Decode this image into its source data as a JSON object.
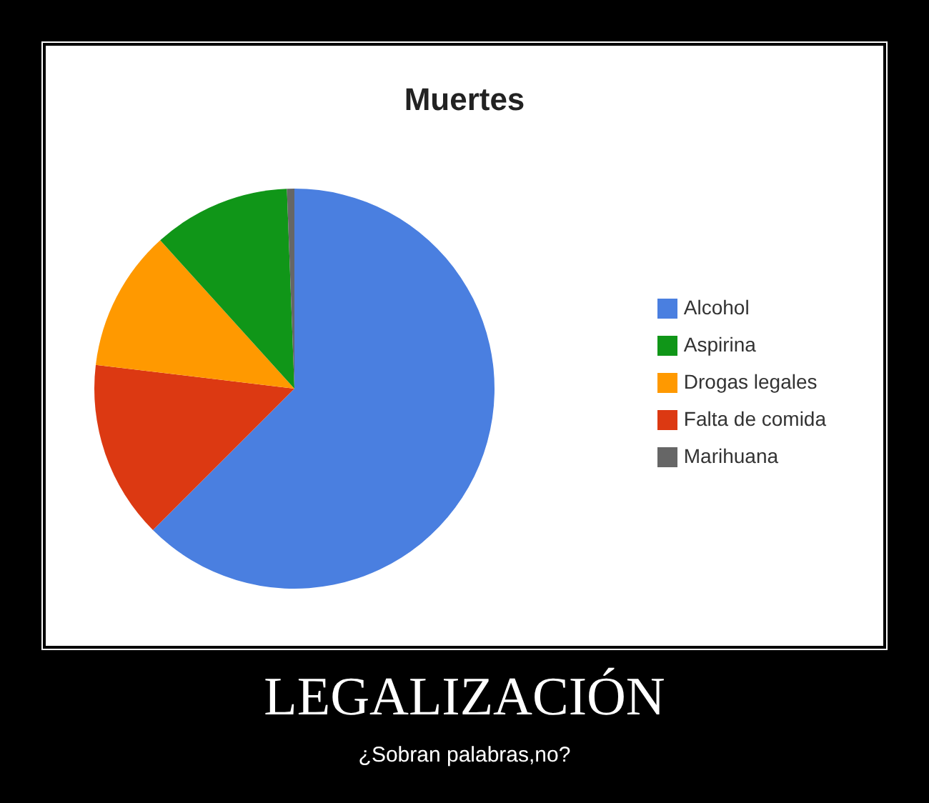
{
  "chart_data": {
    "type": "pie",
    "title": "Muertes",
    "categories": [
      "Alcohol",
      "Falta de comida",
      "Drogas legales",
      "Aspirina",
      "Marihuana"
    ],
    "values": [
      62.5,
      14.4,
      11.4,
      11.1,
      0.6
    ],
    "colors": [
      "#4a7fe0",
      "#dc3912",
      "#ff9900",
      "#109618",
      "#666666"
    ],
    "legend": "right",
    "annotations": [
      "LEGALIZACIÓN",
      "¿Sobran palabras,no?"
    ]
  }
}
